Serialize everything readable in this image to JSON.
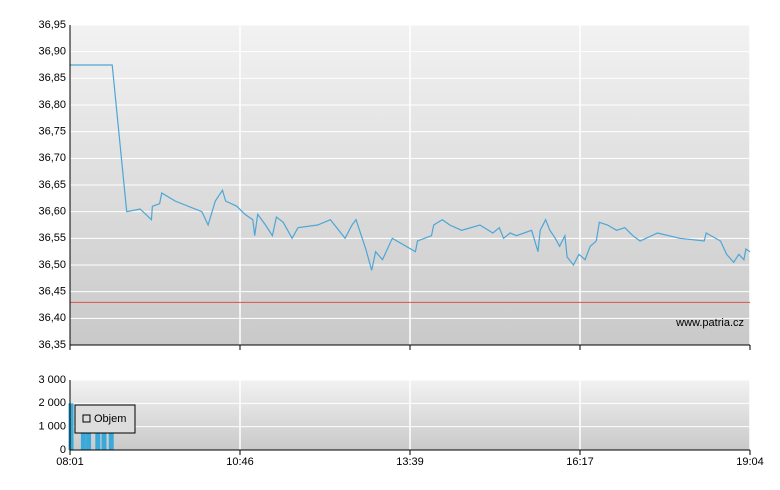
{
  "chart_data": [
    {
      "type": "line",
      "x": [
        481,
        522,
        536,
        549,
        560,
        561,
        568,
        570,
        583,
        609,
        615,
        622,
        629,
        632,
        643,
        651,
        659,
        661,
        664,
        672,
        679,
        683,
        690,
        699,
        705,
        725,
        738,
        753,
        760,
        764,
        774,
        780,
        784,
        791,
        801,
        824,
        826,
        839,
        841,
        849,
        856,
        867,
        884,
        896,
        902,
        906,
        912,
        918,
        932,
        938,
        940,
        945,
        949,
        954,
        958,
        963,
        965,
        971,
        976,
        982,
        987,
        993,
        996,
        1004,
        1013,
        1021,
        1029,
        1036,
        1053,
        1075,
        1099,
        1101,
        1115,
        1121,
        1128,
        1133,
        1138,
        1140,
        1144
      ],
      "values": [
        36.875,
        36.875,
        36.6,
        36.605,
        36.585,
        36.61,
        36.615,
        36.635,
        36.62,
        36.6,
        36.575,
        36.62,
        36.64,
        36.62,
        36.61,
        36.595,
        36.585,
        36.555,
        36.595,
        36.575,
        36.555,
        36.59,
        36.58,
        36.55,
        36.57,
        36.575,
        36.585,
        36.55,
        36.575,
        36.585,
        36.53,
        36.49,
        36.525,
        36.51,
        36.55,
        36.525,
        36.545,
        36.555,
        36.575,
        36.585,
        36.575,
        36.565,
        36.575,
        36.56,
        36.57,
        36.55,
        36.56,
        36.555,
        36.565,
        36.525,
        36.565,
        36.585,
        36.565,
        36.55,
        36.535,
        36.555,
        36.515,
        36.5,
        36.52,
        36.51,
        36.535,
        36.545,
        36.58,
        36.575,
        36.565,
        36.57,
        36.555,
        36.545,
        36.56,
        36.55,
        36.545,
        36.56,
        36.545,
        36.52,
        36.505,
        36.52,
        36.51,
        36.53,
        36.525
      ],
      "color": "#4da6d6",
      "xlim": [
        481,
        1144
      ],
      "ylim": [
        36.35,
        36.95
      ],
      "yticks": [
        {
          "value": 36.35,
          "label": "36,35"
        },
        {
          "value": 36.4,
          "label": "36,40"
        },
        {
          "value": 36.45,
          "label": "36,45"
        },
        {
          "value": 36.5,
          "label": "36,50"
        },
        {
          "value": 36.55,
          "label": "36,55"
        },
        {
          "value": 36.6,
          "label": "36,60"
        },
        {
          "value": 36.65,
          "label": "36,65"
        },
        {
          "value": 36.7,
          "label": "36,70"
        },
        {
          "value": 36.75,
          "label": "36,75"
        },
        {
          "value": 36.8,
          "label": "36,80"
        },
        {
          "value": 36.85,
          "label": "36,85"
        },
        {
          "value": 36.9,
          "label": "36,90"
        },
        {
          "value": 36.95,
          "label": "36,95"
        }
      ],
      "grid": true,
      "reference_line": {
        "value": 36.43,
        "color": "#d9534f"
      },
      "watermark": "www.patria.cz"
    },
    {
      "type": "bar",
      "x": [
        482,
        494,
        499,
        508,
        514,
        521
      ],
      "series": [
        {
          "name": "Objem",
          "color": "#3aa8d8",
          "values": [
            2000,
            1800,
            1800,
            1800,
            1800,
            1800
          ]
        }
      ],
      "xlim": [
        481,
        1144
      ],
      "ylim": [
        0,
        3000
      ],
      "yticks": [
        0,
        {
          "value": 1000,
          "label": "1 000"
        },
        {
          "value": 2000,
          "label": "2 000"
        },
        {
          "value": 3000,
          "label": "3 000"
        }
      ],
      "xticks": [
        {
          "value": 481,
          "label": "08:01"
        },
        {
          "value": 646,
          "label": "10:46"
        },
        {
          "value": 819,
          "label": "13:39"
        },
        {
          "value": 977,
          "label": "16:17"
        },
        {
          "value": 1144,
          "label": "19:04"
        }
      ],
      "grid": true,
      "legend": "upper-left"
    }
  ]
}
